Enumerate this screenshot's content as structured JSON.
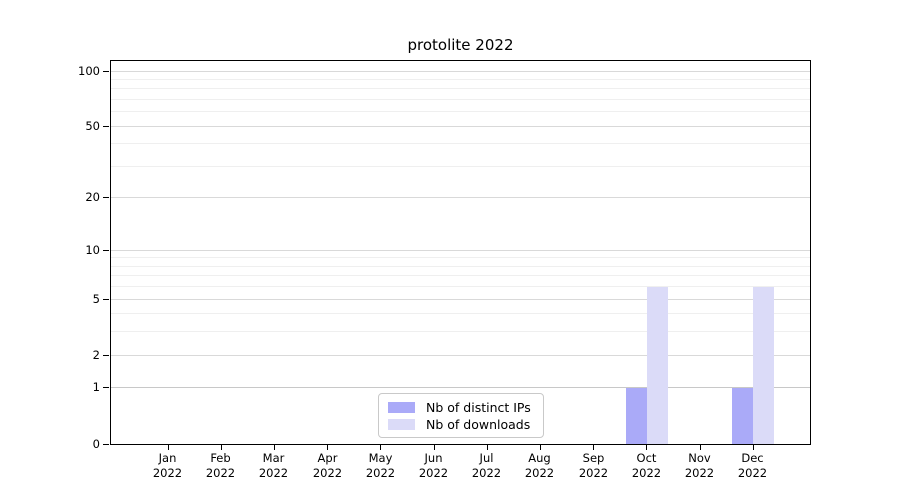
{
  "chart_data": {
    "type": "bar",
    "title": "protolite 2022",
    "categories": [
      "Jan",
      "Feb",
      "Mar",
      "Apr",
      "May",
      "Jun",
      "Jul",
      "Aug",
      "Sep",
      "Oct",
      "Nov",
      "Dec"
    ],
    "category_year": "2022",
    "xticklabels": [
      [
        "Jan",
        "2022"
      ],
      [
        "Feb",
        "2022"
      ],
      [
        "Mar",
        "2022"
      ],
      [
        "Apr",
        "2022"
      ],
      [
        "May",
        "2022"
      ],
      [
        "Jun",
        "2022"
      ],
      [
        "Jul",
        "2022"
      ],
      [
        "Aug",
        "2022"
      ],
      [
        "Sep",
        "2022"
      ],
      [
        "Oct",
        "2022"
      ],
      [
        "Nov",
        "2022"
      ],
      [
        "Dec",
        "2022"
      ]
    ],
    "series": [
      {
        "name": "Nb of distinct IPs",
        "color": "#aaaaf8",
        "values": [
          0,
          0,
          0,
          0,
          0,
          0,
          0,
          0,
          0,
          1,
          0,
          1
        ]
      },
      {
        "name": "Nb of downloads",
        "color": "#dbdbf8",
        "values": [
          0,
          0,
          0,
          0,
          0,
          0,
          0,
          0,
          0,
          6,
          0,
          6
        ]
      }
    ],
    "yscale": "log1p",
    "ylim": [
      0,
      113
    ],
    "yticks": [
      0,
      1,
      2,
      5,
      10,
      20,
      50,
      100
    ],
    "yticks_minor": [
      3,
      4,
      6,
      7,
      8,
      9,
      30,
      40,
      60,
      70,
      80,
      90
    ],
    "xlabel": "",
    "ylabel": "",
    "grid": true,
    "legend_position": "bottom-center-inside",
    "colors": {
      "spine": "#000000",
      "grid_major": "#d9d9d9",
      "grid_minor": "#efefef",
      "background": "#ffffff",
      "text": "#000000"
    }
  }
}
